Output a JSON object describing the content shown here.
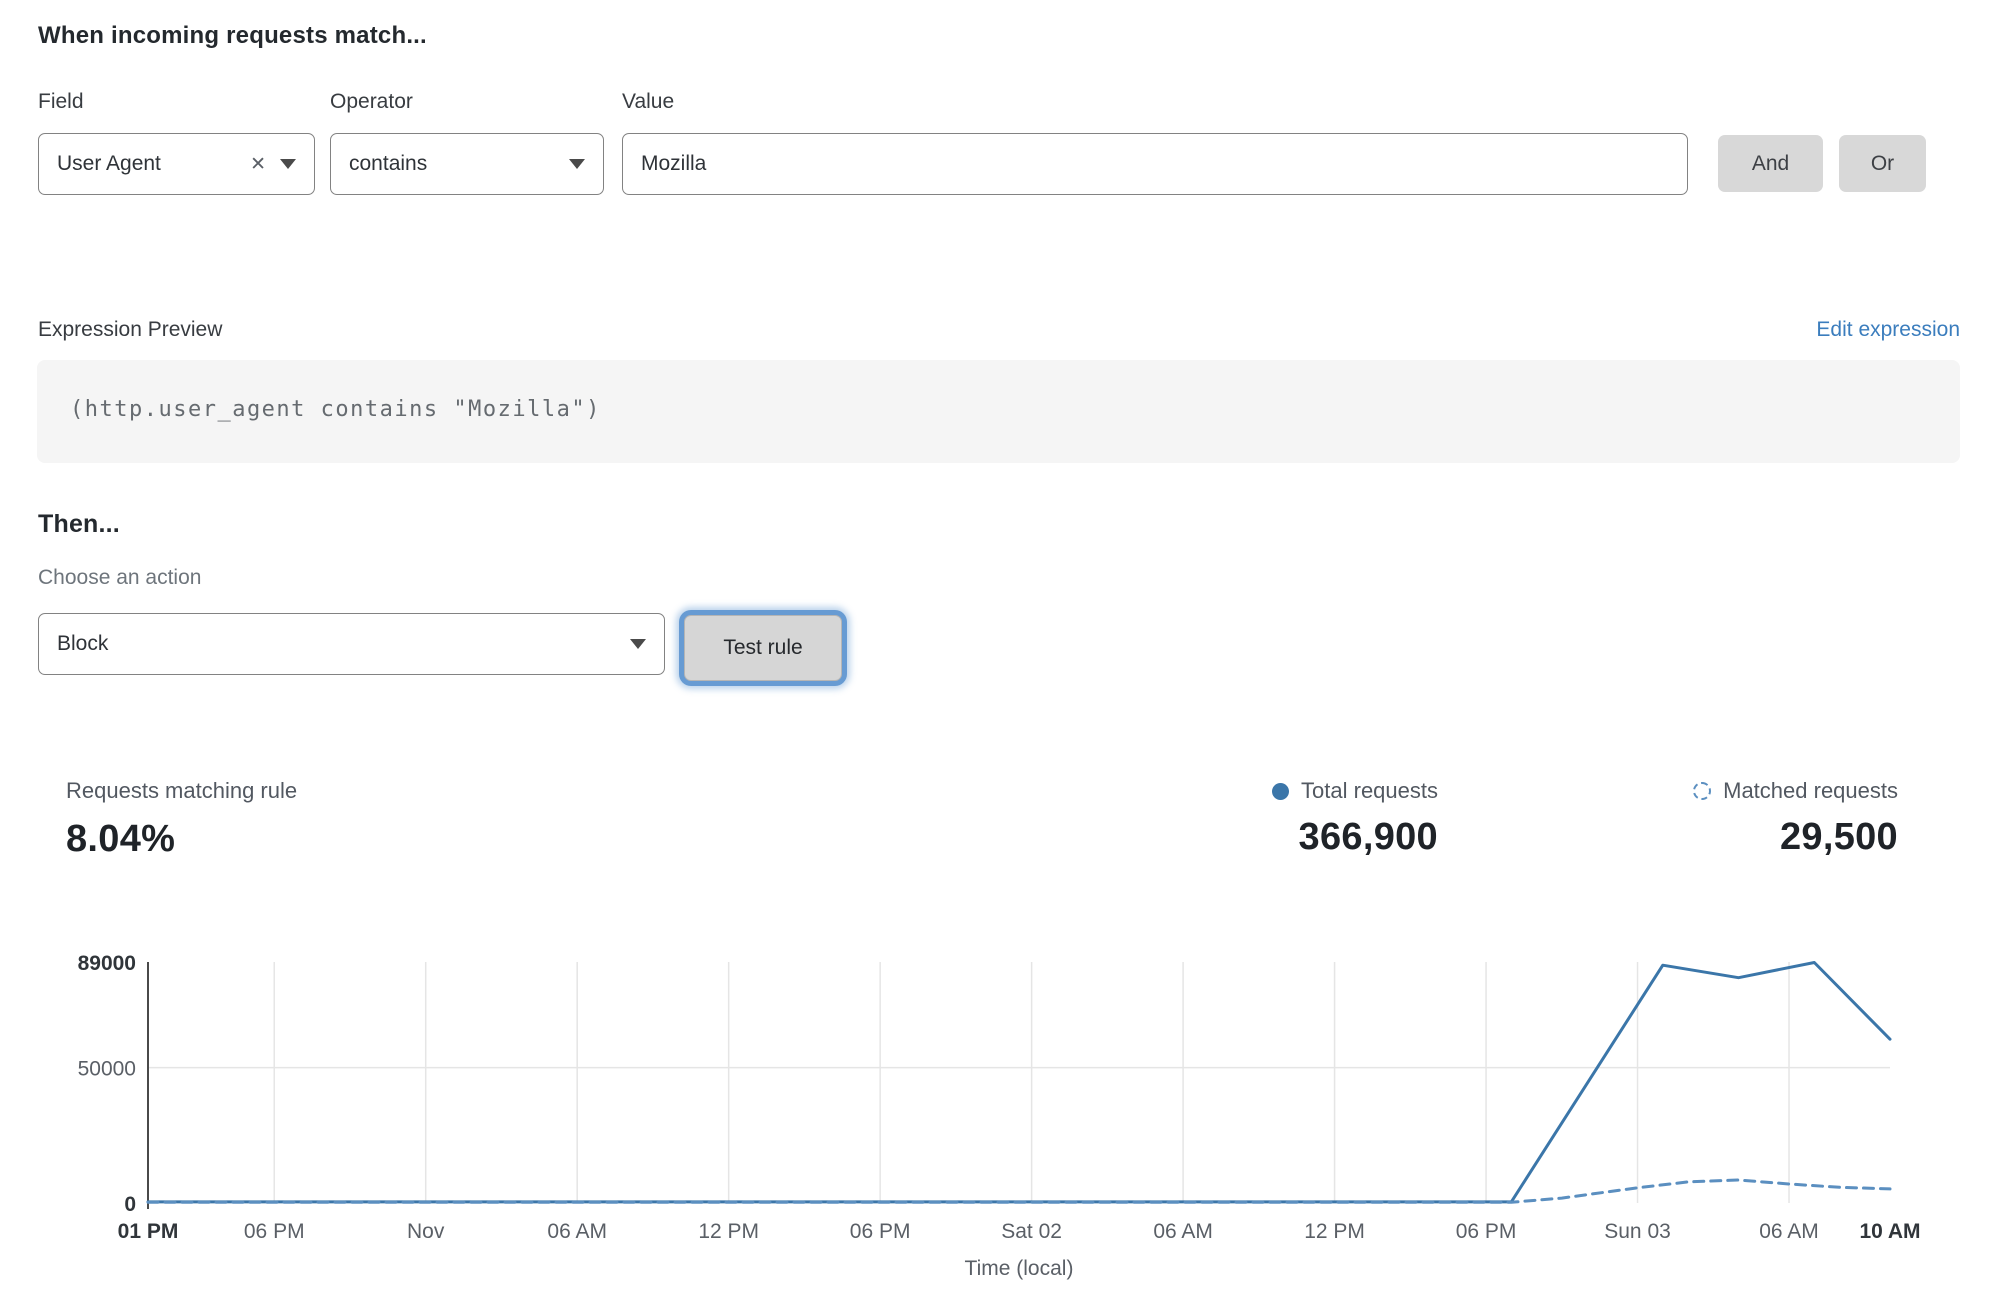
{
  "rule_builder": {
    "title": "When incoming requests match...",
    "field": {
      "label": "Field",
      "value": "User Agent"
    },
    "operator": {
      "label": "Operator",
      "value": "contains"
    },
    "value": {
      "label": "Value",
      "value": "Mozilla"
    },
    "and_label": "And",
    "or_label": "Or"
  },
  "expression": {
    "label": "Expression Preview",
    "edit_link": "Edit expression",
    "code": "(http.user_agent contains \"Mozilla\")"
  },
  "action": {
    "title": "Then...",
    "choose_label": "Choose an action",
    "value": "Block",
    "test_button": "Test rule"
  },
  "stats": {
    "matching": {
      "label": "Requests matching rule",
      "value": "8.04%"
    },
    "total": {
      "label": "Total requests",
      "value": "366,900"
    },
    "matched": {
      "label": "Matched requests",
      "value": "29,500"
    }
  },
  "colors": {
    "accent_blue": "#3b76a9",
    "link_blue": "#3b7dbd"
  },
  "chart_data": {
    "type": "line",
    "title": "",
    "xlabel": "Time (local)",
    "ylabel": "",
    "ylim": [
      0,
      89000
    ],
    "x_range_hours": [
      0,
      69
    ],
    "grid": true,
    "grid_color": "#e5e5e5",
    "axis_color": "#4a4a4a",
    "tick_color": "#5a5f66",
    "tick_bold_color": "#30353a",
    "legend_position": "top-right above chart",
    "yticks": [
      {
        "value": 0,
        "label": "0",
        "bold": true,
        "grid": false
      },
      {
        "value": 50000,
        "label": "50000",
        "bold": false,
        "grid": true
      },
      {
        "value": 89000,
        "label": "89000",
        "bold": true,
        "grid": false
      }
    ],
    "xticks": [
      {
        "h": 0,
        "label": "01 PM",
        "bold": true
      },
      {
        "h": 5,
        "label": "06 PM",
        "bold": false
      },
      {
        "h": 11,
        "label": "Nov",
        "bold": false
      },
      {
        "h": 17,
        "label": "06 AM",
        "bold": false
      },
      {
        "h": 23,
        "label": "12 PM",
        "bold": false
      },
      {
        "h": 29,
        "label": "06 PM",
        "bold": false
      },
      {
        "h": 35,
        "label": "Sat 02",
        "bold": false
      },
      {
        "h": 41,
        "label": "06 AM",
        "bold": false
      },
      {
        "h": 47,
        "label": "12 PM",
        "bold": false
      },
      {
        "h": 53,
        "label": "06 PM",
        "bold": false
      },
      {
        "h": 59,
        "label": "Sun 03",
        "bold": false
      },
      {
        "h": 65,
        "label": "06 AM",
        "bold": false
      },
      {
        "h": 69,
        "label": "10 AM",
        "bold": true
      }
    ],
    "series": [
      {
        "name": "Total requests",
        "style": "solid",
        "color": "#3b76a9",
        "points": [
          [
            0,
            400
          ],
          [
            53,
            400
          ],
          [
            54,
            400
          ],
          [
            60,
            87800
          ],
          [
            63,
            83200
          ],
          [
            66,
            88800
          ],
          [
            69,
            60500
          ]
        ]
      },
      {
        "name": "Matched requests",
        "style": "dashed",
        "color": "#5b8fc0",
        "points": [
          [
            0,
            250
          ],
          [
            54,
            250
          ],
          [
            56,
            1800
          ],
          [
            59,
            5600
          ],
          [
            61,
            7800
          ],
          [
            63,
            8500
          ],
          [
            65,
            7000
          ],
          [
            67,
            5800
          ],
          [
            69,
            5200
          ]
        ]
      }
    ]
  }
}
